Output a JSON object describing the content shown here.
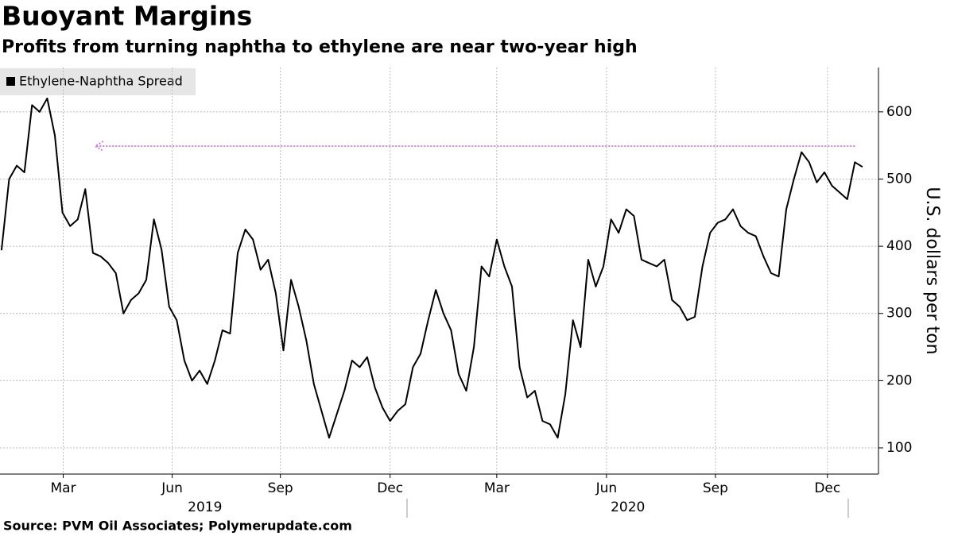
{
  "chart_data": {
    "type": "line",
    "title": "Buoyant Margins",
    "subtitle": "Profits from turning naphtha to ethylene are near two-year high",
    "source": "Source:  PVM Oil Associates; Polymerupdate.com",
    "y_label": "U.S. dollars  per ton",
    "series": [
      {
        "name": "Ethylene-Naphtha Spread",
        "color": "#000000",
        "values": [
          394,
          500,
          520,
          510,
          610,
          600,
          620,
          565,
          450,
          430,
          440,
          485,
          390,
          385,
          375,
          360,
          300,
          320,
          330,
          350,
          440,
          395,
          310,
          290,
          230,
          200,
          215,
          195,
          230,
          275,
          270,
          390,
          425,
          410,
          365,
          380,
          330,
          245,
          350,
          310,
          260,
          195,
          155,
          115,
          150,
          185,
          230,
          220,
          235,
          190,
          160,
          140,
          155,
          165,
          220,
          240,
          290,
          335,
          300,
          275,
          210,
          185,
          250,
          370,
          355,
          410,
          370,
          340,
          220,
          175,
          185,
          140,
          135,
          115,
          180,
          290,
          250,
          380,
          340,
          370,
          440,
          420,
          455,
          445,
          380,
          375,
          370,
          380,
          320,
          310,
          290,
          295,
          370,
          420,
          435,
          440,
          455,
          430,
          420,
          415,
          385,
          360,
          355,
          455,
          500,
          540,
          525,
          495,
          510,
          490,
          480,
          470,
          525,
          518
        ]
      }
    ],
    "xlim": [
      -0.2,
      115.1
    ],
    "xticks": [
      {
        "value": 8.1,
        "label": "Mar"
      },
      {
        "value": 22.4,
        "label": "Jun"
      },
      {
        "value": 36.6,
        "label": "Sep"
      },
      {
        "value": 51.0,
        "label": "Dec"
      },
      {
        "value": 65.0,
        "label": "Mar"
      },
      {
        "value": 79.4,
        "label": "Jun"
      },
      {
        "value": 93.7,
        "label": "Sep"
      },
      {
        "value": 108.4,
        "label": "Dec"
      }
    ],
    "year_labels": [
      {
        "value": 26.7,
        "label": "2019"
      },
      {
        "value": 82.2,
        "label": "2020"
      }
    ],
    "ylim": [
      61,
      666
    ],
    "yticks": [
      100,
      200,
      300,
      400,
      500,
      600
    ],
    "grid": true,
    "legend": "top-left",
    "arrow": {
      "x": [
        112,
        12.3
      ],
      "y": 549,
      "color": "#d07ee0"
    }
  }
}
